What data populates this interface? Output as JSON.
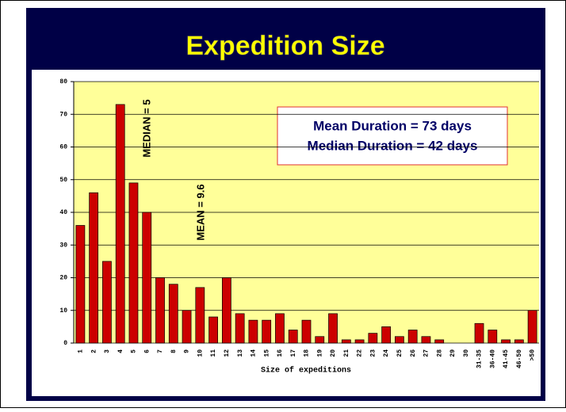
{
  "chart_data": {
    "type": "bar",
    "title": "Expedition Size",
    "x_label": "Size of expeditions",
    "categories": [
      "1",
      "2",
      "3",
      "4",
      "5",
      "6",
      "7",
      "8",
      "9",
      "10",
      "11",
      "12",
      "13",
      "14",
      "15",
      "16",
      "17",
      "18",
      "19",
      "20",
      "21",
      "22",
      "23",
      "24",
      "25",
      "26",
      "27",
      "28",
      "29",
      "30",
      "31-35",
      "36-40",
      "41-45",
      "46-50",
      ">50"
    ],
    "values": [
      36,
      46,
      25,
      73,
      49,
      40,
      20,
      18,
      10,
      17,
      8,
      20,
      9,
      7,
      7,
      9,
      4,
      7,
      2,
      9,
      1,
      1,
      3,
      5,
      2,
      4,
      2,
      1,
      0,
      0,
      6,
      4,
      1,
      1,
      10
    ],
    "color": "#cc0000",
    "ylim": [
      0,
      80
    ],
    "yticks": [
      0,
      10,
      20,
      30,
      40,
      50,
      60,
      70,
      80
    ],
    "grid": true,
    "annotations": [
      "MEDIAN = 5",
      "MEAN = 9.6"
    ],
    "info_box": [
      "Mean Duration = 73 days",
      "Median Duration = 42 days"
    ]
  }
}
